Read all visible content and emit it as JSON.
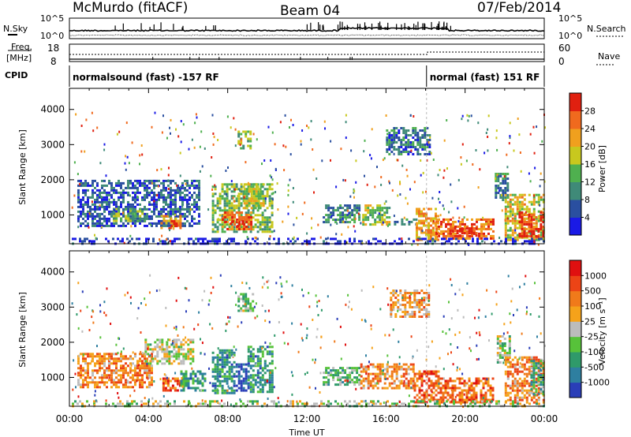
{
  "header": {
    "station": "McMurdo (fitACF)",
    "beam": "Beam 04",
    "date": "07/Feb/2014"
  },
  "summary_panels": {
    "nsky_label": "N.Sky",
    "nsky_scale_top": "10^5",
    "nsky_scale_bottom": "10^0",
    "nsearch_label": "N.Search",
    "nsearch_scale_top": "10^5",
    "nsearch_scale_bottom": "10^0",
    "freq_label": "Freq.",
    "freq_unit": "[MHz]",
    "freq_scale_top": "18",
    "freq_scale_bottom": "8",
    "nave_label": "Nave",
    "nave_scale_top": "60",
    "nave_scale_bottom": "0",
    "cpid_label": "CPID",
    "cpid_segments": [
      {
        "label": "normalsound (fast) -157 RF",
        "start_hour": 0,
        "end_hour": 18.05
      },
      {
        "label": "normal (fast) 151 RF",
        "start_hour": 18.05,
        "end_hour": 24
      }
    ]
  },
  "chart_data": [
    {
      "type": "heatmap",
      "name": "power",
      "xlabel": "",
      "ylabel": "Slant Range [km]",
      "xlim": [
        0,
        24
      ],
      "ylim": [
        180,
        4600
      ],
      "yticks": [
        "1000",
        "2000",
        "3000",
        "4000"
      ],
      "colorbar_label": "Power [dB]",
      "colorbar_ticks": [
        "4",
        "8",
        "12",
        "16",
        "20",
        "24",
        "28"
      ],
      "colorbar_colors": [
        "#1a1ae6",
        "#2a4fa0",
        "#3f8a78",
        "#4fb04f",
        "#c8c81e",
        "#f0a01e",
        "#f06a1e",
        "#e02010"
      ],
      "regions": [
        {
          "t0": 0.4,
          "t1": 6.5,
          "r0": 700,
          "r1": 2000,
          "level": 0.2
        },
        {
          "t0": 2.2,
          "t1": 3.8,
          "r0": 800,
          "r1": 1200,
          "level": 0.4
        },
        {
          "t0": 4.6,
          "t1": 5.6,
          "r0": 600,
          "r1": 1000,
          "level": 0.7
        },
        {
          "t0": 5.0,
          "t1": 5.4,
          "r0": 600,
          "r1": 850,
          "level": 0.95
        },
        {
          "t0": 7.2,
          "t1": 10.3,
          "r0": 500,
          "r1": 1900,
          "level": 0.45
        },
        {
          "t0": 7.7,
          "t1": 9.2,
          "r0": 600,
          "r1": 1100,
          "level": 0.8
        },
        {
          "t0": 8.1,
          "t1": 8.8,
          "r0": 650,
          "r1": 850,
          "level": 0.95
        },
        {
          "t0": 8.8,
          "t1": 9.8,
          "r0": 1200,
          "r1": 1900,
          "level": 0.55
        },
        {
          "t0": 8.5,
          "t1": 9.2,
          "r0": 2900,
          "r1": 3400,
          "level": 0.5
        },
        {
          "t0": 12.8,
          "t1": 14.6,
          "r0": 800,
          "r1": 1300,
          "level": 0.3
        },
        {
          "t0": 14.8,
          "t1": 16.2,
          "r0": 700,
          "r1": 1300,
          "level": 0.5
        },
        {
          "t0": 16.4,
          "t1": 17.6,
          "r0": 700,
          "r1": 900,
          "level": 0.3
        },
        {
          "t0": 16.0,
          "t1": 18.2,
          "r0": 2700,
          "r1": 3500,
          "level": 0.25
        },
        {
          "t0": 17.5,
          "t1": 18.6,
          "r0": 300,
          "r1": 1200,
          "level": 0.7
        },
        {
          "t0": 18.5,
          "t1": 21.4,
          "r0": 300,
          "r1": 900,
          "level": 0.8
        },
        {
          "t0": 19.2,
          "t1": 20.6,
          "r0": 400,
          "r1": 650,
          "level": 0.95
        },
        {
          "t0": 22.0,
          "t1": 24.0,
          "r0": 300,
          "r1": 1600,
          "level": 0.6
        },
        {
          "t0": 22.7,
          "t1": 24.0,
          "r0": 400,
          "r1": 1100,
          "level": 0.9
        },
        {
          "t0": 21.5,
          "t1": 22.2,
          "r0": 1400,
          "r1": 2200,
          "level": 0.3
        },
        {
          "t0": 0.0,
          "t1": 24.0,
          "r0": 180,
          "r1": 350,
          "level": 0.1
        }
      ]
    },
    {
      "type": "heatmap",
      "name": "velocity",
      "xlabel": "Time UT",
      "ylabel": "Slant Range [km]",
      "xlim": [
        0,
        24
      ],
      "ylim": [
        180,
        4600
      ],
      "yticks": [
        "1000",
        "2000",
        "3000",
        "4000"
      ],
      "xticks": [
        "00:00",
        "04:00",
        "08:00",
        "12:00",
        "16:00",
        "20:00",
        "00:00"
      ],
      "colorbar_label": "Velocity [m s⁻¹]",
      "colorbar_ticks": [
        "1000",
        "500",
        "100",
        "25",
        "-25",
        "-100",
        "-500",
        "-1000"
      ],
      "colorbar_colors": [
        "#2a3eb8",
        "#2e7fa0",
        "#2f9a6a",
        "#57c23a",
        "#bcbcbc",
        "#f5a21a",
        "#f07a1a",
        "#ec4416",
        "#e01010"
      ],
      "regions": [
        {
          "t0": 0.4,
          "t1": 4.2,
          "r0": 700,
          "r1": 1700,
          "level": 0.7
        },
        {
          "t0": 3.8,
          "t1": 6.2,
          "r0": 1400,
          "r1": 2100,
          "level": 0.5
        },
        {
          "t0": 4.7,
          "t1": 5.7,
          "r0": 600,
          "r1": 1000,
          "level": 0.8
        },
        {
          "t0": 5.6,
          "t1": 6.8,
          "r0": 600,
          "r1": 1200,
          "level": 0.25
        },
        {
          "t0": 7.2,
          "t1": 8.3,
          "r0": 550,
          "r1": 1800,
          "level": 0.25
        },
        {
          "t0": 8.4,
          "t1": 9.0,
          "r0": 600,
          "r1": 1400,
          "level": 0.05
        },
        {
          "t0": 9.0,
          "t1": 10.3,
          "r0": 600,
          "r1": 1900,
          "level": 0.25
        },
        {
          "t0": 8.5,
          "t1": 9.3,
          "r0": 2900,
          "r1": 3400,
          "level": 0.4
        },
        {
          "t0": 12.8,
          "t1": 14.6,
          "r0": 800,
          "r1": 1300,
          "level": 0.35
        },
        {
          "t0": 14.7,
          "t1": 17.4,
          "r0": 700,
          "r1": 1400,
          "level": 0.7
        },
        {
          "t0": 16.2,
          "t1": 18.2,
          "r0": 2700,
          "r1": 3500,
          "level": 0.65
        },
        {
          "t0": 17.4,
          "t1": 18.6,
          "r0": 300,
          "r1": 1200,
          "level": 0.8
        },
        {
          "t0": 18.6,
          "t1": 21.4,
          "r0": 300,
          "r1": 1000,
          "level": 0.75
        },
        {
          "t0": 21.6,
          "t1": 22.3,
          "r0": 1400,
          "r1": 2200,
          "level": 0.45
        },
        {
          "t0": 22.0,
          "t1": 24.0,
          "r0": 300,
          "r1": 1600,
          "level": 0.7
        },
        {
          "t0": 23.3,
          "t1": 24.0,
          "r0": 500,
          "r1": 1500,
          "level": 0.3
        },
        {
          "t0": 0.0,
          "t1": 24.0,
          "r0": 180,
          "r1": 350,
          "level": 0.45
        }
      ]
    }
  ]
}
